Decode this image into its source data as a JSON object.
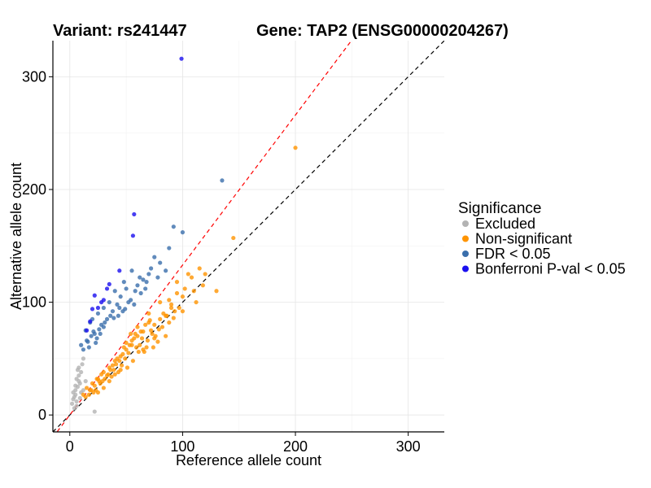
{
  "header": {
    "variant_label": "Variant: rs241447",
    "gene_label": "Gene: TAP2 (ENSG00000204267)"
  },
  "chart_data": {
    "type": "scatter",
    "xlabel": "Reference allele count",
    "ylabel": "Alternative allele count",
    "xlim": [
      -15,
      332
    ],
    "ylim": [
      -15,
      332
    ],
    "xticks": [
      0,
      100,
      200,
      300
    ],
    "yticks": [
      0,
      100,
      200,
      300
    ],
    "grid": true,
    "reference_lines": [
      {
        "name": "identity",
        "slope": 1,
        "intercept": 0,
        "color": "#000000",
        "style": "dashed"
      },
      {
        "name": "fitted",
        "slope": 1.33,
        "intercept": 0,
        "color": "#ff0000",
        "style": "dashed"
      }
    ],
    "legend": {
      "title": "Significance",
      "placement": "right",
      "entries": [
        {
          "label": "Excluded",
          "color": "#b3b3b3"
        },
        {
          "label": "Non-significant",
          "color": "#ff9400"
        },
        {
          "label": "FDR < 0.05",
          "color": "#3a6eab"
        },
        {
          "label": "Bonferroni P-val < 0.05",
          "color": "#1a0fef"
        }
      ]
    },
    "series": [
      {
        "name": "Excluded",
        "color": "#b3b3b3",
        "x": [
          2,
          3,
          4,
          5,
          5,
          6,
          7,
          8,
          6,
          4,
          9,
          10,
          8,
          12,
          5,
          7,
          3,
          9,
          6,
          10,
          11,
          14,
          22,
          8,
          12
        ],
        "y": [
          10,
          14,
          6,
          18,
          22,
          12,
          25,
          30,
          8,
          16,
          28,
          20,
          35,
          22,
          26,
          40,
          20,
          15,
          32,
          38,
          45,
          30,
          3,
          42,
          50
        ]
      },
      {
        "name": "Non-significant",
        "color": "#ff9400",
        "x": [
          200,
          145,
          120,
          110,
          100,
          95,
          90,
          85,
          80,
          75,
          105,
          130,
          115,
          92,
          88,
          70,
          65,
          60,
          55,
          50,
          45,
          40,
          35,
          30,
          25,
          20,
          15,
          12,
          62,
          58,
          72,
          68,
          78,
          82,
          48,
          42,
          38,
          33,
          28,
          22,
          18,
          95,
          100,
          108,
          85,
          90,
          70,
          75,
          52,
          57,
          63,
          66,
          44,
          47,
          36,
          31,
          26,
          21,
          80,
          73,
          67,
          55,
          49,
          41,
          37,
          29,
          23,
          17,
          14,
          60,
          65,
          53,
          46,
          39,
          34,
          27,
          24,
          19,
          112,
          102,
          97,
          88,
          83,
          76,
          71,
          64,
          59,
          54,
          50,
          43,
          118,
          93,
          86,
          79,
          74,
          69,
          61,
          56,
          51,
          45,
          40,
          35,
          30,
          25
        ],
        "y": [
          237,
          157,
          125,
          110,
          105,
          118,
          95,
          88,
          100,
          80,
          125,
          110,
          130,
          86,
          102,
          82,
          74,
          70,
          66,
          58,
          52,
          48,
          42,
          38,
          32,
          28,
          24,
          18,
          62,
          72,
          75,
          60,
          65,
          78,
          60,
          50,
          44,
          35,
          36,
          26,
          22,
          108,
          92,
          122,
          70,
          98,
          90,
          68,
          55,
          68,
          74,
          56,
          48,
          54,
          40,
          32,
          30,
          20,
          85,
          72,
          80,
          62,
          50,
          45,
          34,
          30,
          22,
          18,
          16,
          78,
          58,
          62,
          44,
          40,
          36,
          28,
          32,
          22,
          100,
          112,
          95,
          82,
          90,
          70,
          84,
          68,
          60,
          72,
          64,
          38,
          115,
          92,
          88,
          76,
          60,
          66,
          56,
          48,
          42,
          40,
          36,
          30,
          24,
          20
        ]
      },
      {
        "name": "FDR < 0.05",
        "color": "#3a6eab",
        "x": [
          135,
          92,
          100,
          88,
          75,
          62,
          48,
          40,
          30,
          20,
          14,
          10,
          55,
          50,
          45,
          35,
          25,
          18,
          70,
          65,
          60,
          42,
          38,
          28,
          22,
          16,
          12,
          58,
          52,
          44,
          33,
          26,
          19,
          80,
          72,
          68,
          47,
          36,
          30,
          24,
          17,
          63,
          54,
          43,
          31,
          21,
          15,
          85,
          78,
          67,
          57,
          49,
          39,
          27,
          23
        ],
        "y": [
          208,
          167,
          162,
          148,
          140,
          122,
          118,
          110,
          95,
          85,
          75,
          62,
          128,
          112,
          105,
          100,
          90,
          82,
          125,
          120,
          115,
          98,
          92,
          80,
          72,
          65,
          58,
          110,
          100,
          95,
          85,
          76,
          70,
          135,
          130,
          118,
          92,
          88,
          78,
          68,
          60,
          108,
          102,
          88,
          82,
          74,
          66,
          128,
          122,
          112,
          98,
          94,
          86,
          72,
          64
        ]
      },
      {
        "name": "Bonferroni P-val < 0.05",
        "color": "#1a0fef",
        "x": [
          99,
          57,
          56,
          44,
          35,
          33,
          28,
          25,
          22,
          20,
          18,
          15,
          30
        ],
        "y": [
          316,
          178,
          159,
          128,
          116,
          112,
          100,
          95,
          106,
          94,
          83,
          75,
          102
        ]
      }
    ]
  }
}
